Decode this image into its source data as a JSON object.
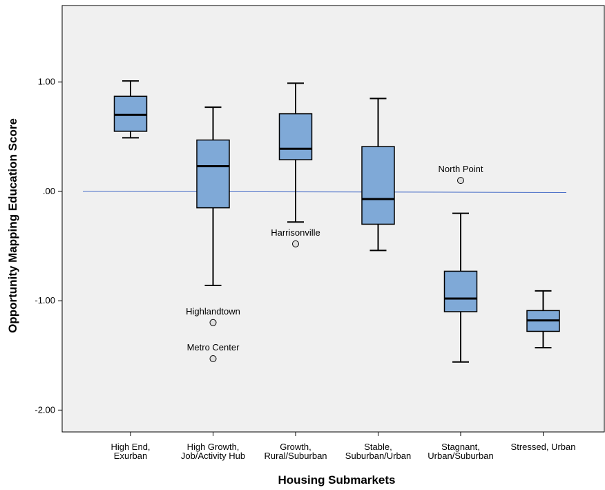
{
  "chart_data": {
    "type": "boxplot",
    "xlabel": "Housing Submarkets",
    "ylabel": "Opportunity Mapping Education Score",
    "ylim": [
      -2.2,
      1.7
    ],
    "yticks": [
      1.0,
      0.0,
      -1.0,
      -2.0
    ],
    "ytick_labels": [
      "1.00",
      ".00",
      "-1.00",
      "-2.00"
    ],
    "reference_line": 0.0,
    "colors": {
      "box_fill": "#7fa9d7",
      "plot_bg": "#f0f0f0",
      "reference_line": "#4a6fc8"
    },
    "categories": [
      {
        "label_lines": [
          "High End,",
          "Exurban"
        ],
        "whisker_low": 0.49,
        "q1": 0.55,
        "median": 0.7,
        "q3": 0.87,
        "whisker_high": 1.01,
        "outliers": []
      },
      {
        "label_lines": [
          "High Growth,",
          "Job/Activity Hub"
        ],
        "whisker_low": -0.86,
        "q1": -0.15,
        "median": 0.23,
        "q3": 0.47,
        "whisker_high": 0.77,
        "outliers": [
          {
            "value": -1.2,
            "label": "Highlandtown"
          },
          {
            "value": -1.53,
            "label": "Metro Center"
          }
        ]
      },
      {
        "label_lines": [
          "Growth,",
          "Rural/Suburban"
        ],
        "whisker_low": -0.28,
        "q1": 0.29,
        "median": 0.39,
        "q3": 0.71,
        "whisker_high": 0.99,
        "outliers": [
          {
            "value": -0.48,
            "label": "Harrisonville"
          }
        ]
      },
      {
        "label_lines": [
          "Stable,",
          "Suburban/Urban"
        ],
        "whisker_low": -0.54,
        "q1": -0.3,
        "median": -0.07,
        "q3": 0.41,
        "whisker_high": 0.85,
        "outliers": []
      },
      {
        "label_lines": [
          "Stagnant,",
          "Urban/Suburban"
        ],
        "whisker_low": -1.56,
        "q1": -1.1,
        "median": -0.98,
        "q3": -0.73,
        "whisker_high": -0.2,
        "outliers": [
          {
            "value": 0.1,
            "label": "North Point"
          }
        ]
      },
      {
        "label_lines": [
          "Stressed, Urban"
        ],
        "whisker_low": -1.43,
        "q1": -1.28,
        "median": -1.18,
        "q3": -1.09,
        "whisker_high": -0.91,
        "outliers": []
      }
    ]
  }
}
